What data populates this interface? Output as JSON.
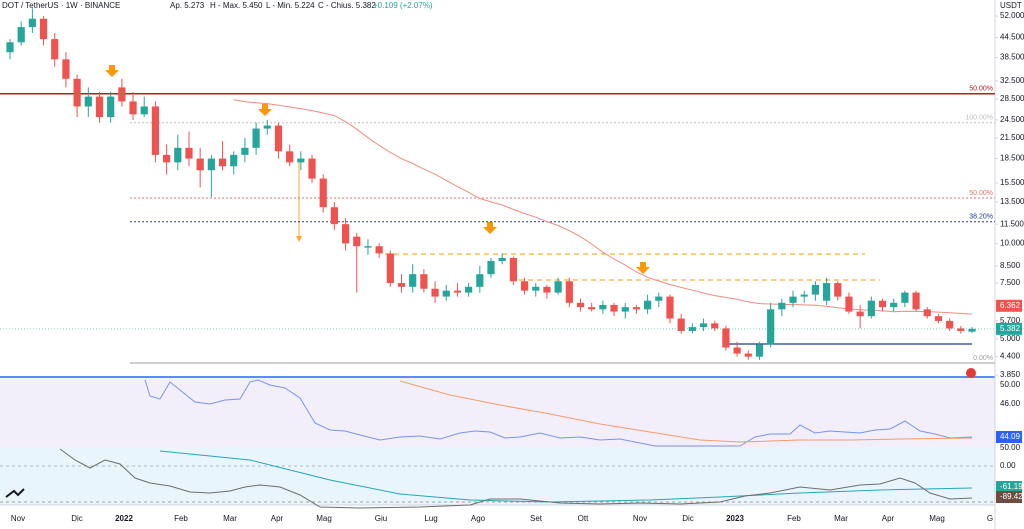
{
  "header": {
    "symbol": "DOT / TetherUS · 1W · BINANCE",
    "open": "Ap. 5.273",
    "high": "H - Max. 5.450",
    "low": "L - Min. 5.224",
    "close": "C - Chius. 5.382",
    "change": "+0.109 (+2.07%)"
  },
  "price_axis": {
    "unit": "USDT",
    "ticks": [
      {
        "value": 52,
        "label": "52.000"
      },
      {
        "value": 44.5,
        "label": "44.500"
      },
      {
        "value": 38.5,
        "label": "38.500"
      },
      {
        "value": 32.5,
        "label": "32.500"
      },
      {
        "value": 28.5,
        "label": "28.500"
      },
      {
        "value": 24.5,
        "label": "24.500"
      },
      {
        "value": 21.5,
        "label": "21.500"
      },
      {
        "value": 18.5,
        "label": "18.500"
      },
      {
        "value": 15.5,
        "label": "15.500"
      },
      {
        "value": 13.5,
        "label": "13.500"
      },
      {
        "value": 11.5,
        "label": "11.500"
      },
      {
        "value": 10,
        "label": "10.000"
      },
      {
        "value": 8.5,
        "label": "8.500"
      },
      {
        "value": 7.5,
        "label": "7.500"
      },
      {
        "value": 5.7,
        "label": "5.700"
      },
      {
        "value": 5,
        "label": "5.000"
      },
      {
        "value": 4.4,
        "label": "4.400"
      },
      {
        "value": 3.85,
        "label": "3.850"
      }
    ],
    "tags": [
      {
        "value": 6.362,
        "label": "6.362",
        "color": "#ef5350"
      },
      {
        "value": 5.382,
        "label": "5.382",
        "color": "#26a69a"
      }
    ]
  },
  "levels": [
    {
      "value": 29.6,
      "label": "50.00%",
      "color": "#b71c1c",
      "style": "solid"
    },
    {
      "value": 24.0,
      "label": "100.00%",
      "color": "#bdbdbd",
      "style": "dotted"
    },
    {
      "value": 13.9,
      "label": "50.00%",
      "color": "#e57373",
      "style": "dotted"
    },
    {
      "value": 11.7,
      "label": "38.20%",
      "color": "#1e3a8a",
      "style": "dotted"
    },
    {
      "value": 4.2,
      "label": "0.00%",
      "color": "#9e9e9e",
      "style": "solid"
    }
  ],
  "time_axis": [
    "Nov",
    "Dic",
    "2022",
    "Feb",
    "Mar",
    "Apr",
    "Mag",
    "Giu",
    "Lug",
    "Ago",
    "Set",
    "Ott",
    "Nov",
    "Dic",
    "2023",
    "Feb",
    "Mar",
    "Apr",
    "Mag",
    "G"
  ],
  "indicator_axis": [
    "50.00",
    "46.00",
    "44.09",
    "50.00",
    "0.00",
    "-61.19",
    "-89.42"
  ],
  "candles": [
    [
      40,
      44,
      38,
      43
    ],
    [
      43,
      50,
      42,
      48
    ],
    [
      48,
      55,
      46,
      51
    ],
    [
      51,
      52,
      42,
      44
    ],
    [
      44,
      46,
      36,
      38
    ],
    [
      38,
      40,
      31,
      33
    ],
    [
      33,
      34,
      25,
      27
    ],
    [
      27,
      31,
      25,
      29
    ],
    [
      29,
      30,
      24,
      25
    ],
    [
      25,
      30,
      24,
      29
    ],
    [
      31,
      33,
      27,
      28
    ],
    [
      28,
      30,
      24.5,
      25.5
    ],
    [
      25.5,
      29,
      25,
      27
    ],
    [
      27,
      28,
      18,
      19
    ],
    [
      19,
      20.5,
      16.5,
      18
    ],
    [
      18,
      22,
      17,
      20
    ],
    [
      20,
      22.5,
      17.5,
      18.5
    ],
    [
      18.5,
      20,
      15,
      17
    ],
    [
      17,
      19,
      14,
      18.5
    ],
    [
      18.5,
      21,
      17,
      17.5
    ],
    [
      17.5,
      19.5,
      16.5,
      19
    ],
    [
      19,
      21.5,
      18,
      20
    ],
    [
      20,
      24,
      19,
      23
    ],
    [
      23,
      24.5,
      22,
      23.5
    ],
    [
      23.5,
      24,
      18.5,
      19.5
    ],
    [
      19.5,
      20.5,
      17.5,
      18
    ],
    [
      18,
      19.5,
      17,
      18.5
    ],
    [
      18.5,
      19,
      15.5,
      16
    ],
    [
      16,
      16.5,
      12.5,
      13
    ],
    [
      13,
      13.5,
      11,
      11.5
    ],
    [
      11.5,
      12,
      9.5,
      10
    ],
    [
      10.5,
      10.8,
      7,
      9.8
    ],
    [
      9.7,
      10.3,
      9.2,
      9.8
    ],
    [
      9.8,
      10,
      9,
      9.3
    ],
    [
      9.3,
      9.5,
      7.3,
      7.5
    ],
    [
      7.5,
      8,
      7,
      7.3
    ],
    [
      7.3,
      8.6,
      7,
      8
    ],
    [
      8,
      8.3,
      7,
      7.2
    ],
    [
      7.2,
      7.6,
      6.5,
      6.8
    ],
    [
      6.8,
      7.4,
      6.6,
      7.1
    ],
    [
      7.1,
      7.5,
      6.8,
      7
    ],
    [
      7,
      7.5,
      6.8,
      7.3
    ],
    [
      7.3,
      8.5,
      7,
      8
    ],
    [
      8,
      9,
      7.8,
      8.8
    ],
    [
      8.8,
      9.3,
      8.6,
      9
    ],
    [
      9,
      9.1,
      7.4,
      7.6
    ],
    [
      7.6,
      7.8,
      6.9,
      7.1
    ],
    [
      7.1,
      7.5,
      6.8,
      7.3
    ],
    [
      7.3,
      7.4,
      6.7,
      7
    ],
    [
      7,
      7.8,
      6.9,
      7.6
    ],
    [
      7.6,
      7.8,
      6.3,
      6.5
    ],
    [
      6.5,
      6.7,
      6.1,
      6.3
    ],
    [
      6.3,
      6.5,
      6.1,
      6.2
    ],
    [
      6.2,
      6.6,
      6,
      6.4
    ],
    [
      6.4,
      6.5,
      5.9,
      6.1
    ],
    [
      6.1,
      6.5,
      5.8,
      6.3
    ],
    [
      6.3,
      6.4,
      6,
      6.2
    ],
    [
      6.2,
      6.9,
      6,
      6.6
    ],
    [
      6.6,
      7,
      6.3,
      6.8
    ],
    [
      6.8,
      6.9,
      5.6,
      5.8
    ],
    [
      5.8,
      6,
      5.2,
      5.3
    ],
    [
      5.3,
      5.6,
      5.2,
      5.45
    ],
    [
      5.45,
      5.8,
      5.3,
      5.6
    ],
    [
      5.6,
      5.7,
      5.3,
      5.4
    ],
    [
      5.4,
      5.5,
      4.6,
      4.7
    ],
    [
      4.7,
      4.9,
      4.4,
      4.5
    ],
    [
      4.5,
      4.6,
      4.3,
      4.4
    ],
    [
      4.4,
      4.9,
      4.3,
      4.8
    ],
    [
      4.8,
      6.5,
      4.7,
      6.2
    ],
    [
      6.2,
      6.7,
      5.9,
      6.5
    ],
    [
      6.5,
      7.1,
      6.3,
      6.8
    ],
    [
      6.8,
      7.1,
      6.5,
      6.9
    ],
    [
      6.9,
      7.6,
      6.6,
      7.4
    ],
    [
      6.6,
      7.8,
      6.4,
      7.5
    ],
    [
      7.5,
      7.6,
      6.6,
      6.8
    ],
    [
      6.8,
      7,
      6,
      6.1
    ],
    [
      6.1,
      6.4,
      5.4,
      5.9
    ],
    [
      5.9,
      6.8,
      5.8,
      6.6
    ],
    [
      6.6,
      6.7,
      6.1,
      6.3
    ],
    [
      6.3,
      6.7,
      6.1,
      6.5
    ],
    [
      6.5,
      7.1,
      6.3,
      7
    ],
    [
      7,
      7.1,
      6.1,
      6.2
    ],
    [
      6.2,
      6.3,
      5.8,
      5.9
    ],
    [
      5.9,
      6,
      5.6,
      5.7
    ],
    [
      5.7,
      5.8,
      5.3,
      5.4
    ],
    [
      5.4,
      5.5,
      5.2,
      5.3
    ],
    [
      5.273,
      5.45,
      5.224,
      5.382
    ]
  ]
}
